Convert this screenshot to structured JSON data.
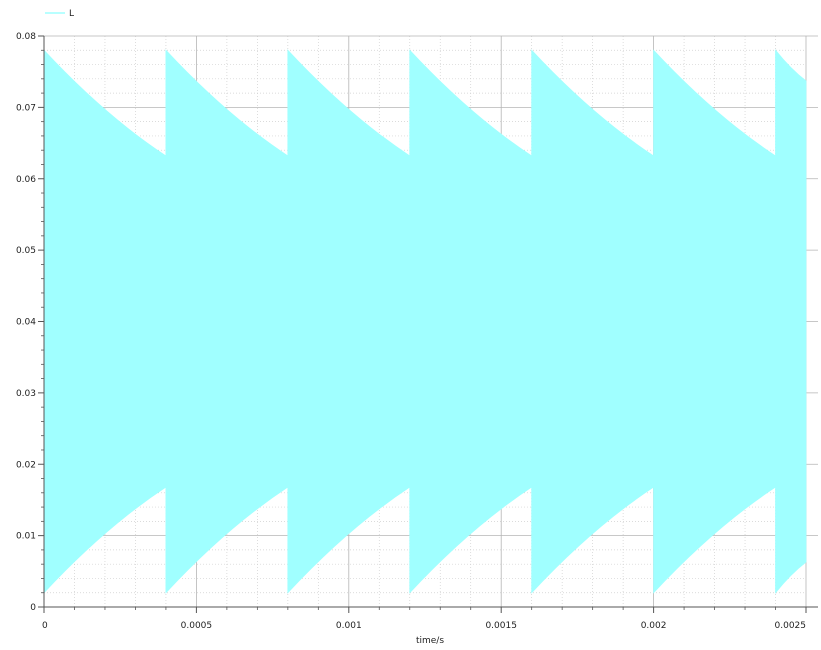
{
  "chart_data": {
    "type": "area",
    "title": "",
    "xlabel": "time/s",
    "ylabel": "",
    "xlim": [
      0,
      0.0025
    ],
    "ylim": [
      0,
      0.08
    ],
    "xticks": [
      "0",
      "0.0005",
      "0.001",
      "0.0015",
      "0.002",
      "0.0025"
    ],
    "xtick_values": [
      0,
      0.0005,
      0.001,
      0.0015,
      0.002,
      0.0025
    ],
    "yticks": [
      "0",
      "0.01",
      "0.02",
      "0.03",
      "0.04",
      "0.05",
      "0.06",
      "0.07",
      "0.08"
    ],
    "ytick_values": [
      0,
      0.01,
      0.02,
      0.03,
      0.04,
      0.05,
      0.06,
      0.07,
      0.08
    ],
    "grid": true,
    "legend_position": "top-left",
    "series": [
      {
        "name": "L",
        "color": "#a0ffff",
        "description_of_shape": "fast oscillation envelope",
        "x": [
          0,
          0.0004,
          0.0004,
          0.0008,
          0.0008,
          0.0012,
          0.0012,
          0.0016,
          0.0016,
          0.002,
          0.002,
          0.0024,
          0.0024,
          0.0025
        ],
        "upper": [
          0.078,
          0.0632,
          0.078,
          0.0632,
          0.078,
          0.0632,
          0.078,
          0.0632,
          0.078,
          0.0632,
          0.078,
          0.0632,
          0.078,
          0.0737
        ],
        "lower": [
          0.002,
          0.0168,
          0.002,
          0.0168,
          0.002,
          0.0168,
          0.002,
          0.0168,
          0.002,
          0.0168,
          0.002,
          0.0168,
          0.002,
          0.0063
        ]
      }
    ]
  }
}
